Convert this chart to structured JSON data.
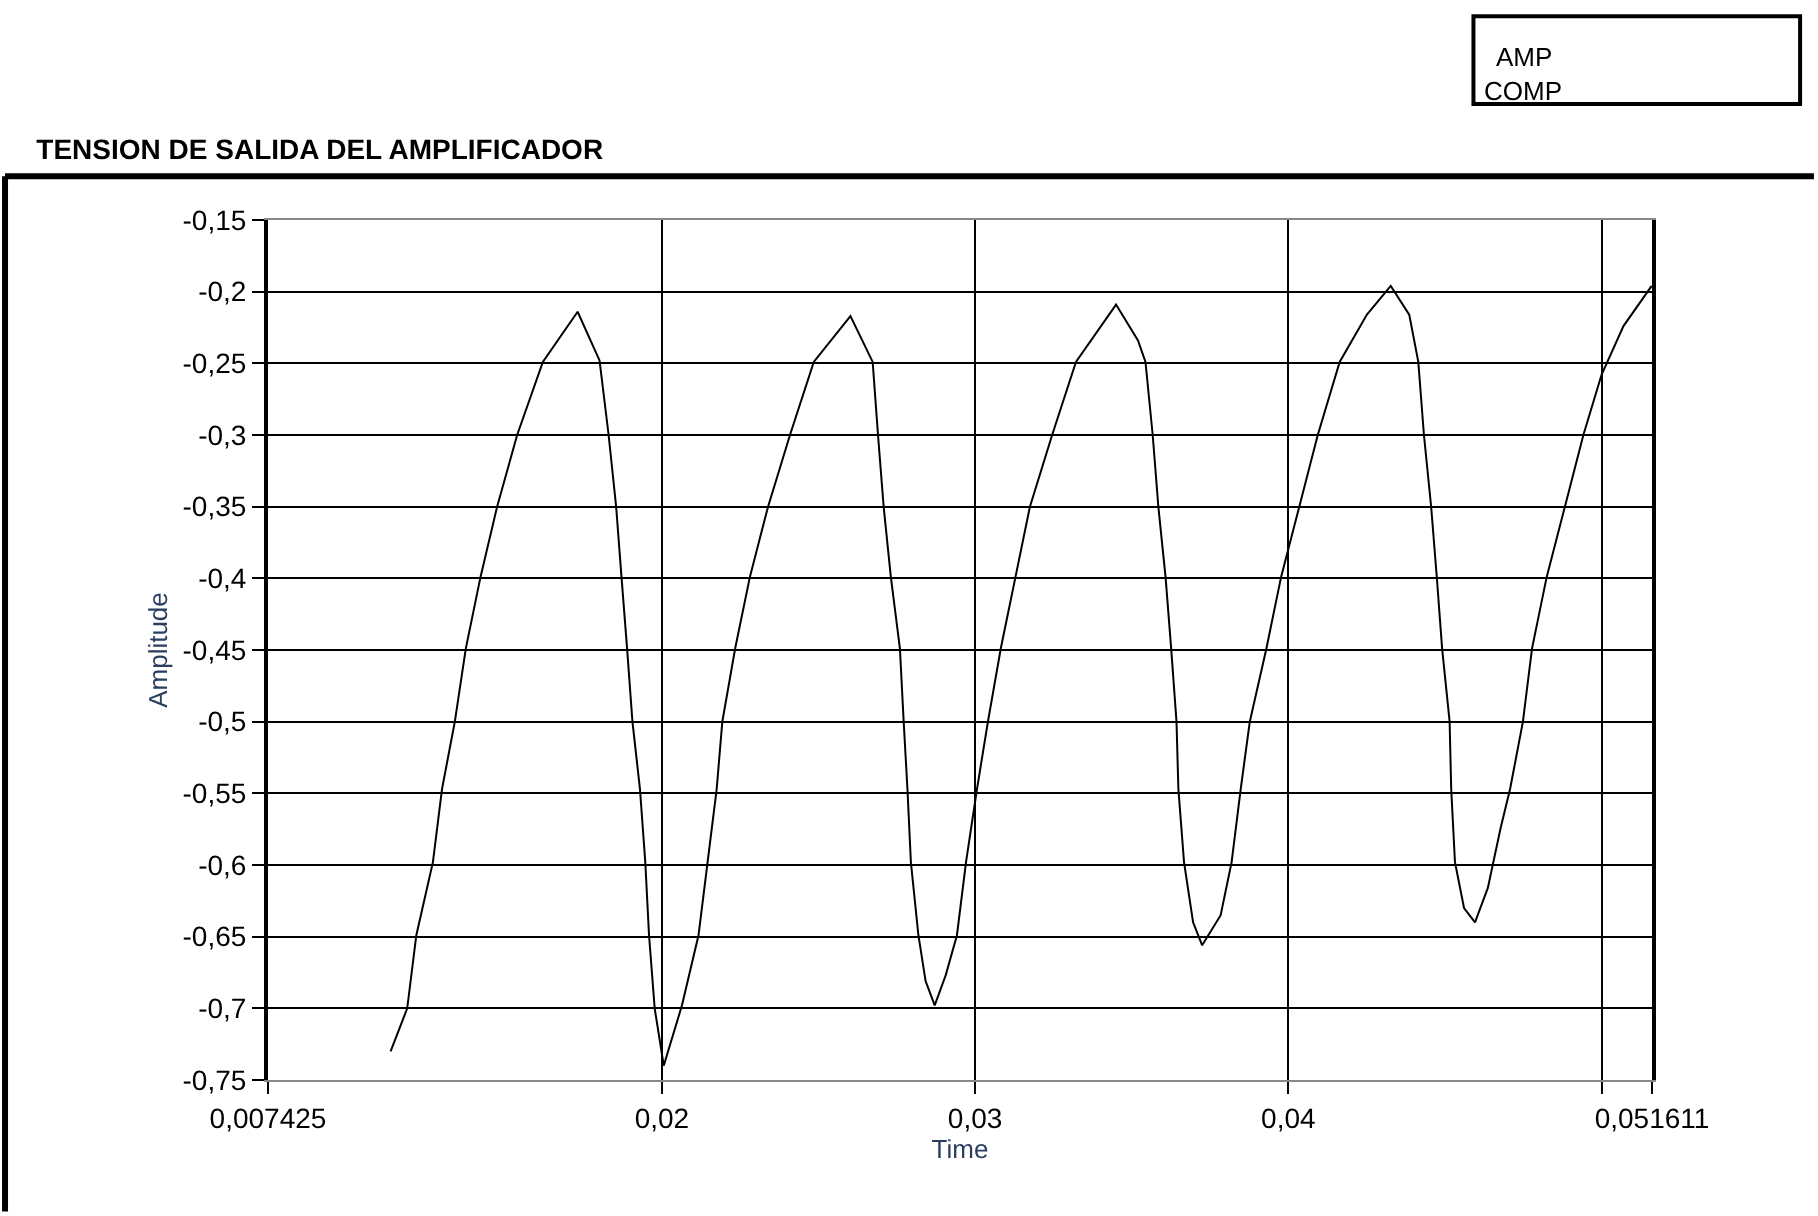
{
  "chart_data": {
    "type": "line",
    "title": "TENSION DE SALIDA DEL AMPLIFICADOR",
    "xlabel": "Time",
    "ylabel": "Amplitude",
    "annotations": [
      "AMP",
      "COMP"
    ],
    "x": [
      0.01134,
      0.01187,
      0.01216,
      0.01269,
      0.01298,
      0.01339,
      0.01374,
      0.01421,
      0.01474,
      0.01538,
      0.0162,
      0.01731,
      0.01801,
      0.0183,
      0.01854,
      0.01871,
      0.01889,
      0.01906,
      0.0193,
      0.01947,
      0.01959,
      0.01977,
      0.02006,
      0.02035,
      0.02064,
      0.02117,
      0.02146,
      0.02175,
      0.02193,
      0.02234,
      0.02281,
      0.02339,
      0.02409,
      0.02485,
      0.02602,
      0.02673,
      0.0269,
      0.02708,
      0.02731,
      0.0276,
      0.02772,
      0.02784,
      0.02795,
      0.02819,
      0.02842,
      0.02871,
      0.02906,
      0.02942,
      0.02971,
      0.03006,
      0.03041,
      0.03082,
      0.03129,
      0.03175,
      0.03246,
      0.03322,
      0.0345,
      0.0352,
      0.03544,
      0.03567,
      0.03585,
      0.03608,
      0.03626,
      0.03643,
      0.03649,
      0.03667,
      0.03696,
      0.03725,
      0.03784,
      0.03819,
      0.03848,
      0.03877,
      0.0393,
      0.03977,
      0.04035,
      0.04094,
      0.04164,
      0.04251,
      0.04327,
      0.04386,
      0.04415,
      0.04433,
      0.04456,
      0.04474,
      0.04491,
      0.04515,
      0.0452,
      0.04532,
      0.04561,
      0.04596,
      0.04637,
      0.04678,
      0.04708,
      0.04749,
      0.04778,
      0.04825,
      0.04883,
      0.04942,
      0.05,
      0.0507,
      0.0516
    ],
    "series": [
      {
        "color": "#000000",
        "values": [
          -0.73,
          -0.7,
          -0.649,
          -0.598,
          -0.547,
          -0.5,
          -0.449,
          -0.399,
          -0.35,
          -0.3,
          -0.249,
          -0.214,
          -0.248,
          -0.3,
          -0.35,
          -0.399,
          -0.449,
          -0.5,
          -0.547,
          -0.598,
          -0.649,
          -0.7,
          -0.74,
          -0.719,
          -0.698,
          -0.649,
          -0.598,
          -0.547,
          -0.5,
          -0.449,
          -0.399,
          -0.35,
          -0.3,
          -0.249,
          -0.217,
          -0.249,
          -0.3,
          -0.35,
          -0.399,
          -0.449,
          -0.5,
          -0.547,
          -0.598,
          -0.649,
          -0.681,
          -0.698,
          -0.677,
          -0.649,
          -0.598,
          -0.547,
          -0.5,
          -0.449,
          -0.399,
          -0.35,
          -0.3,
          -0.249,
          -0.209,
          -0.234,
          -0.249,
          -0.3,
          -0.35,
          -0.399,
          -0.449,
          -0.5,
          -0.547,
          -0.598,
          -0.64,
          -0.656,
          -0.635,
          -0.598,
          -0.547,
          -0.5,
          -0.449,
          -0.399,
          -0.35,
          -0.3,
          -0.249,
          -0.216,
          -0.196,
          -0.216,
          -0.249,
          -0.3,
          -0.35,
          -0.399,
          -0.449,
          -0.5,
          -0.547,
          -0.598,
          -0.63,
          -0.64,
          -0.616,
          -0.574,
          -0.547,
          -0.5,
          -0.449,
          -0.399,
          -0.35,
          -0.3,
          -0.258,
          -0.224,
          -0.196
        ]
      }
    ],
    "xlim": [
      0.007425,
      0.051611
    ],
    "xticks": [
      {
        "value": 0.007425,
        "label": "0,007425"
      },
      {
        "value": 0.02,
        "label": "0,02"
      },
      {
        "value": 0.03,
        "label": "0,03"
      },
      {
        "value": 0.04,
        "label": "0,04"
      },
      {
        "value": 0.05,
        "label": null
      },
      {
        "value": 0.051611,
        "label": "0,051611"
      }
    ],
    "ylim": [
      -0.75,
      -0.15
    ],
    "yticks": [
      {
        "value": -0.75,
        "label": "-0,75"
      },
      {
        "value": -0.7,
        "label": "-0,7"
      },
      {
        "value": -0.65,
        "label": "-0,65"
      },
      {
        "value": -0.6,
        "label": "-0,6"
      },
      {
        "value": -0.55,
        "label": "-0,55"
      },
      {
        "value": -0.5,
        "label": "-0,5"
      },
      {
        "value": -0.45,
        "label": "-0,45"
      },
      {
        "value": -0.4,
        "label": "-0,4"
      },
      {
        "value": -0.35,
        "label": "-0,35"
      },
      {
        "value": -0.3,
        "label": "-0,3"
      },
      {
        "value": -0.25,
        "label": "-0,25"
      },
      {
        "value": -0.2,
        "label": "-0,2"
      },
      {
        "value": -0.15,
        "label": "-0,15"
      }
    ],
    "grid": true,
    "marker": "none",
    "line_style": "solid"
  }
}
